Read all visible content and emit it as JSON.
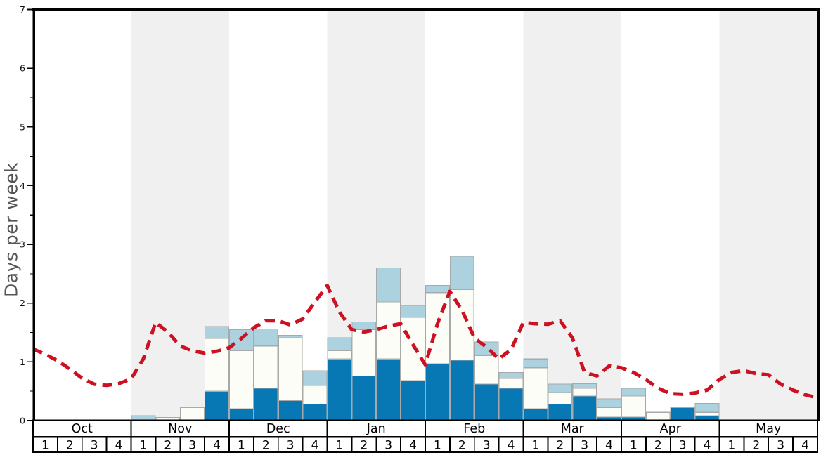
{
  "chart_data": {
    "type": "bar",
    "title": "",
    "ylabel": "Days per week",
    "ylim": [
      0,
      7
    ],
    "y_major_ticks": [
      0,
      1,
      2,
      3,
      4,
      5,
      6,
      7
    ],
    "y_minor_step": 0.5,
    "months": [
      "Oct",
      "Nov",
      "Dec",
      "Jan",
      "Feb",
      "Mar",
      "Apr",
      "May"
    ],
    "week_labels": [
      "1",
      "2",
      "3",
      "4"
    ],
    "weeks_total": 32,
    "shaded_month_indices": [
      1,
      3,
      5,
      7
    ],
    "legend": "none visible",
    "series": [
      {
        "name": "dark_blue_days",
        "color": "#0878b4",
        "values": [
          0,
          0,
          0,
          0,
          0,
          0,
          0,
          0.5,
          0.2,
          0.55,
          0.34,
          0.28,
          1.05,
          0.76,
          1.05,
          0.68,
          0.97,
          1.03,
          0.62,
          0.55,
          0.2,
          0.28,
          0.42,
          0.06,
          0.06,
          0,
          0.22,
          0.08,
          0,
          0,
          0,
          0
        ]
      },
      {
        "name": "white_days",
        "color": "#fdfdf8",
        "values": [
          0,
          0,
          0,
          0,
          0,
          0.05,
          0.22,
          0.9,
          0.99,
          0.72,
          1.07,
          0.32,
          0.14,
          0.79,
          0.97,
          1.08,
          1.21,
          1.2,
          0.49,
          0.17,
          0.7,
          0.2,
          0.13,
          0.16,
          0.36,
          0.14,
          0,
          0.06,
          0,
          0,
          0,
          0
        ]
      },
      {
        "name": "light_blue_days",
        "color": "#abd2de",
        "values": [
          0,
          0,
          0,
          0,
          0.08,
          0,
          0,
          0.2,
          0.36,
          0.29,
          0.04,
          0.25,
          0.22,
          0.13,
          0.58,
          0.2,
          0.12,
          0.57,
          0.23,
          0.1,
          0.15,
          0.14,
          0.08,
          0.15,
          0.13,
          0,
          0,
          0.15,
          0,
          0,
          0,
          0
        ]
      }
    ],
    "line": {
      "name": "red_dashed_trend",
      "color": "#cc1122",
      "points": [
        [
          0,
          1.22
        ],
        [
          0.5,
          1.13
        ],
        [
          1,
          1.02
        ],
        [
          1.5,
          0.88
        ],
        [
          2,
          0.72
        ],
        [
          2.5,
          0.62
        ],
        [
          3,
          0.6
        ],
        [
          3.5,
          0.63
        ],
        [
          4,
          0.71
        ],
        [
          4.5,
          1.05
        ],
        [
          5,
          1.67
        ],
        [
          5.5,
          1.51
        ],
        [
          6,
          1.27
        ],
        [
          6.5,
          1.19
        ],
        [
          7,
          1.15
        ],
        [
          7.5,
          1.18
        ],
        [
          8,
          1.24
        ],
        [
          8.5,
          1.4
        ],
        [
          9,
          1.58
        ],
        [
          9.5,
          1.7
        ],
        [
          10,
          1.7
        ],
        [
          10.5,
          1.63
        ],
        [
          11,
          1.73
        ],
        [
          11.5,
          2.02
        ],
        [
          12,
          2.3
        ],
        [
          12.5,
          1.85
        ],
        [
          13,
          1.55
        ],
        [
          13.5,
          1.51
        ],
        [
          14,
          1.55
        ],
        [
          14.5,
          1.61
        ],
        [
          15,
          1.65
        ],
        [
          15.5,
          1.29
        ],
        [
          16,
          0.95
        ],
        [
          16.5,
          1.65
        ],
        [
          17,
          2.2
        ],
        [
          17.5,
          1.88
        ],
        [
          18,
          1.41
        ],
        [
          18.5,
          1.25
        ],
        [
          19,
          1.05
        ],
        [
          19.5,
          1.21
        ],
        [
          20,
          1.67
        ],
        [
          20.5,
          1.65
        ],
        [
          21,
          1.64
        ],
        [
          21.5,
          1.7
        ],
        [
          22,
          1.41
        ],
        [
          22.5,
          0.82
        ],
        [
          23,
          0.76
        ],
        [
          23.5,
          0.93
        ],
        [
          24,
          0.9
        ],
        [
          24.5,
          0.82
        ],
        [
          25,
          0.7
        ],
        [
          25.5,
          0.55
        ],
        [
          26,
          0.46
        ],
        [
          26.5,
          0.45
        ],
        [
          27,
          0.47
        ],
        [
          27.5,
          0.52
        ],
        [
          28,
          0.7
        ],
        [
          28.5,
          0.82
        ],
        [
          29,
          0.85
        ],
        [
          29.5,
          0.8
        ],
        [
          30,
          0.78
        ],
        [
          30.5,
          0.62
        ],
        [
          31,
          0.52
        ],
        [
          31.5,
          0.44
        ],
        [
          32,
          0.39
        ]
      ]
    },
    "colors": {
      "month_band": "#f0f0f0",
      "bar_outline": "#a9a9a9",
      "axis": "#000000",
      "table_border": "#000000",
      "table_fill": "#ffffff",
      "tick_label": "#111111",
      "ylabel": "#555555"
    }
  }
}
